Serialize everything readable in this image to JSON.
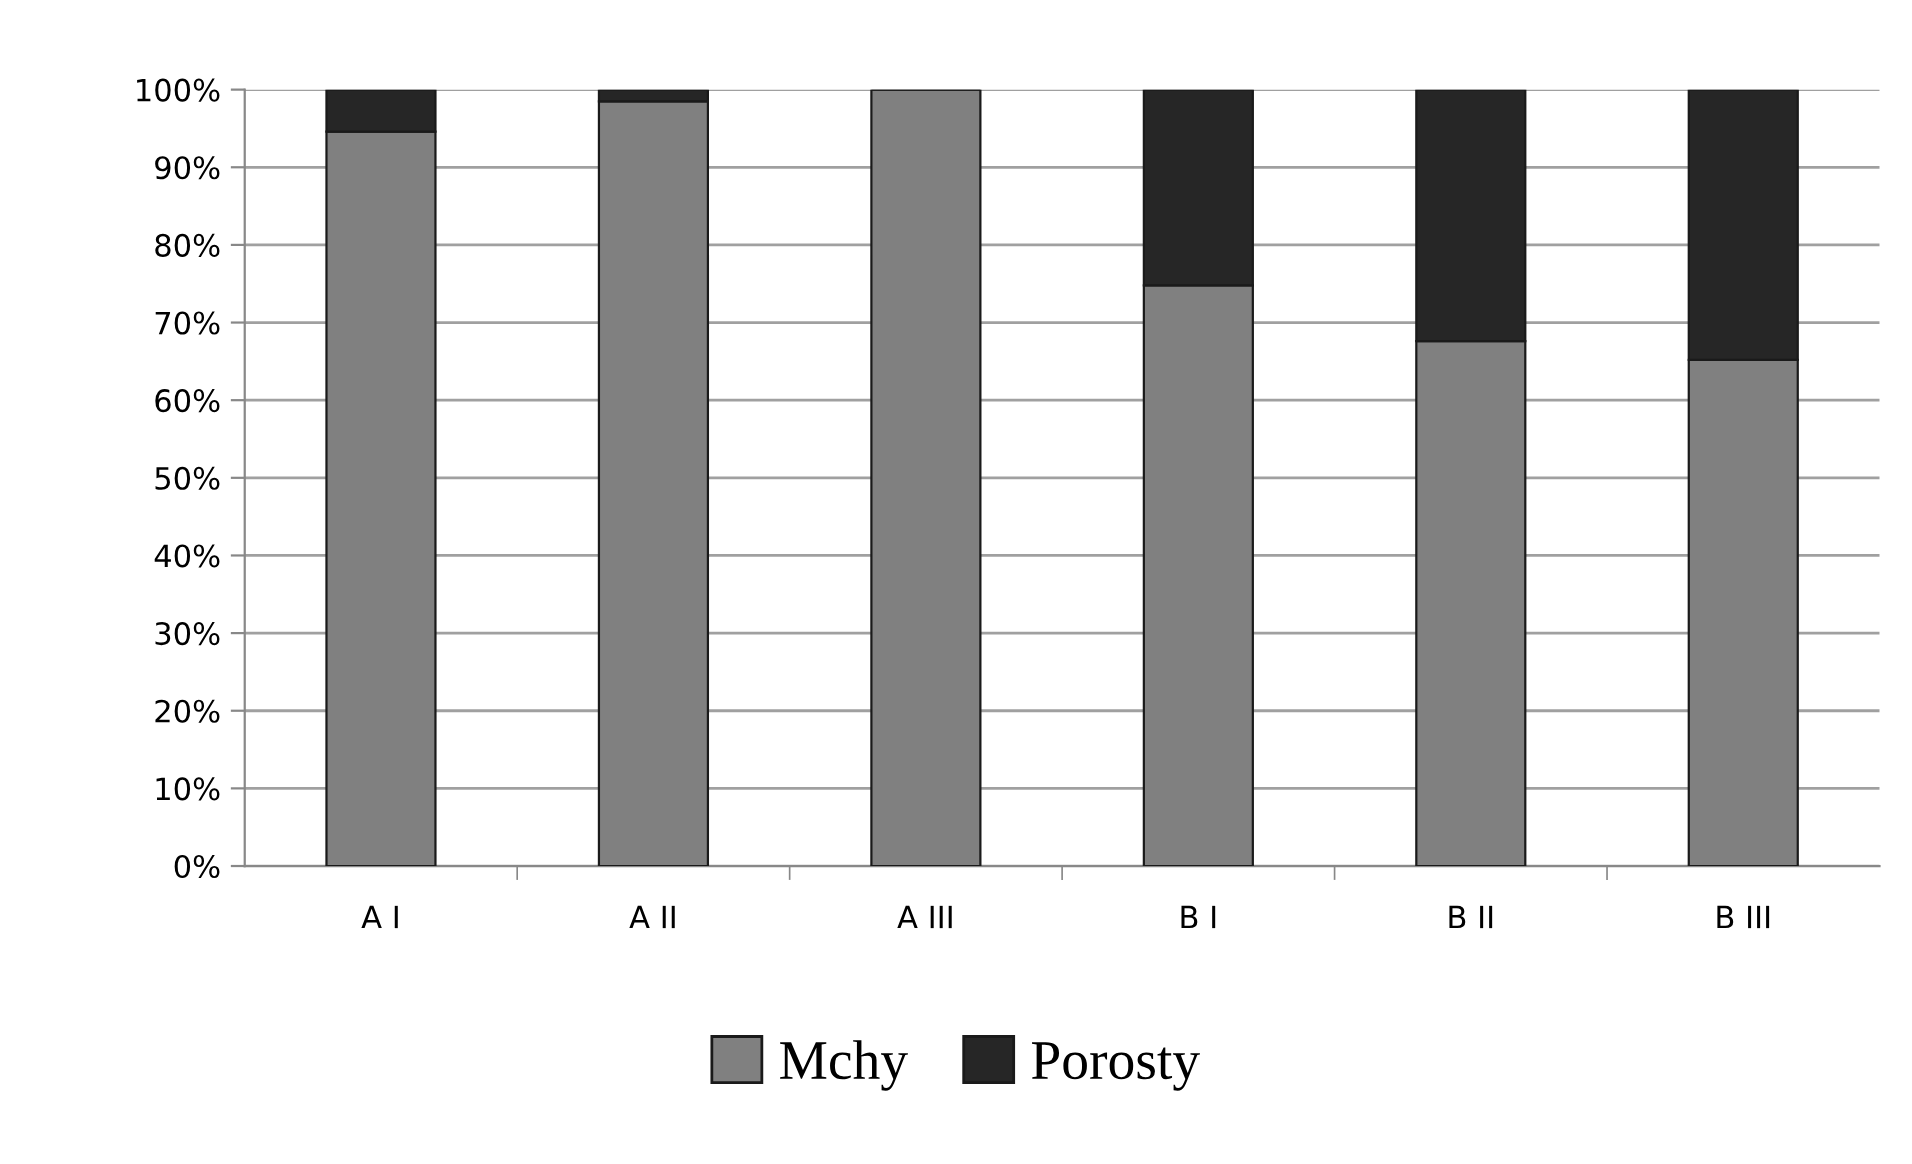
{
  "chart_data": {
    "type": "bar",
    "stacked": true,
    "categories": [
      "A I",
      "A II",
      "A III",
      "B I",
      "B II",
      "B III"
    ],
    "series": [
      {
        "name": "Mchy",
        "color": "#808080",
        "values": [
          94.6,
          98.5,
          100,
          74.8,
          67.6,
          65.2
        ]
      },
      {
        "name": "Porosty",
        "color": "#262626",
        "values": [
          5.4,
          1.5,
          0,
          25.2,
          32.4,
          34.8
        ]
      }
    ],
    "ylim": [
      0,
      100
    ],
    "yticks": [
      {
        "value": 0,
        "label": "0%"
      },
      {
        "value": 10,
        "label": "10%"
      },
      {
        "value": 20,
        "label": "20%"
      },
      {
        "value": 30,
        "label": "30%"
      },
      {
        "value": 40,
        "label": "40%"
      },
      {
        "value": 50,
        "label": "50%"
      },
      {
        "value": 60,
        "label": "60%"
      },
      {
        "value": 70,
        "label": "70%"
      },
      {
        "value": 80,
        "label": "80%"
      },
      {
        "value": 90,
        "label": "90%"
      },
      {
        "value": 100,
        "label": "100%"
      }
    ],
    "grid": "y",
    "legend": "bottom"
  }
}
